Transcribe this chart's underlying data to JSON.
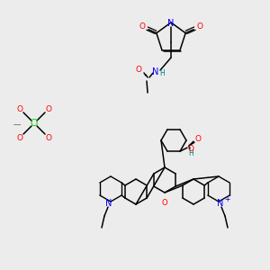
{
  "bg_color": "#ececec",
  "fig_size": [
    3.0,
    3.0
  ],
  "dpi": 100,
  "atom_colors": {
    "C": "#000000",
    "N": "#0000ff",
    "O": "#ff0000",
    "Cl": "#00cc00",
    "H": "#008080",
    "minus": "#888888"
  }
}
